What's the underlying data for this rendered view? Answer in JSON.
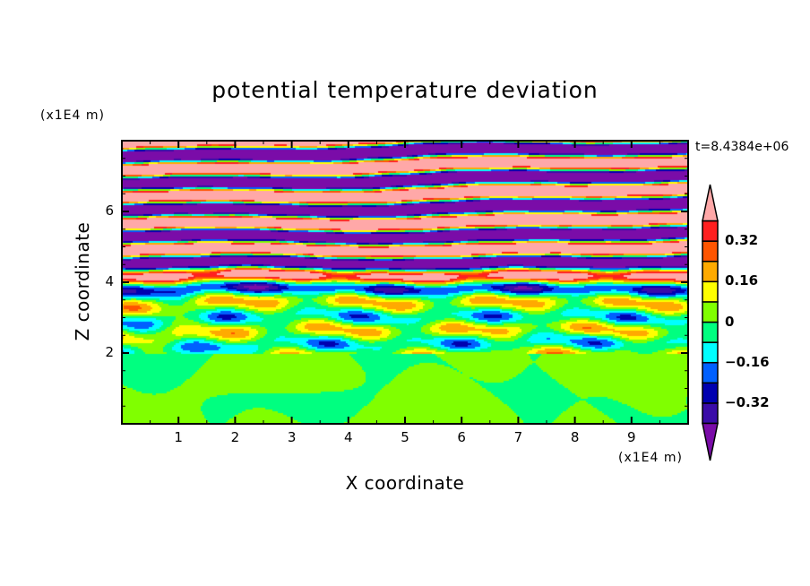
{
  "chart_data": {
    "type": "heatmap",
    "title": "potential temperature deviation",
    "xlabel": "X coordinate",
    "ylabel": "Z coordinate",
    "x_unit": "(x1E4 m)",
    "y_unit": "(x1E4 m)",
    "annotation": "t=8.4384e+06",
    "xlim": [
      0,
      10
    ],
    "ylim": [
      0,
      8
    ],
    "x_ticks": [
      "1",
      "2",
      "3",
      "4",
      "5",
      "6",
      "7",
      "8",
      "9"
    ],
    "y_ticks": [
      "2",
      "4",
      "6"
    ],
    "levels": [
      -0.4,
      -0.32,
      -0.24,
      -0.16,
      -0.08,
      0,
      0.08,
      0.16,
      0.24,
      0.32,
      0.4
    ],
    "colors": [
      "#7a0ca8",
      "#3a0ca8",
      "#0000b0",
      "#0060ff",
      "#00ffff",
      "#00ff80",
      "#80ff00",
      "#ffff00",
      "#ffaa00",
      "#ff5500",
      "#ff2020",
      "#ffa8a8"
    ],
    "colorbar_labels": [
      {
        "value": 0.32,
        "label": "0.32"
      },
      {
        "value": 0.16,
        "label": "0.16"
      },
      {
        "value": 0,
        "label": "0"
      },
      {
        "value": -0.16,
        "label": "-0.16"
      },
      {
        "value": -0.32,
        "label": "-0.32"
      }
    ],
    "description_of_field": "strongly layered bands above z≈4.6 alternating >0.4 and <-0.4; mixed bands 2–4.6; weak ±0.08 blobs below z≈2"
  }
}
